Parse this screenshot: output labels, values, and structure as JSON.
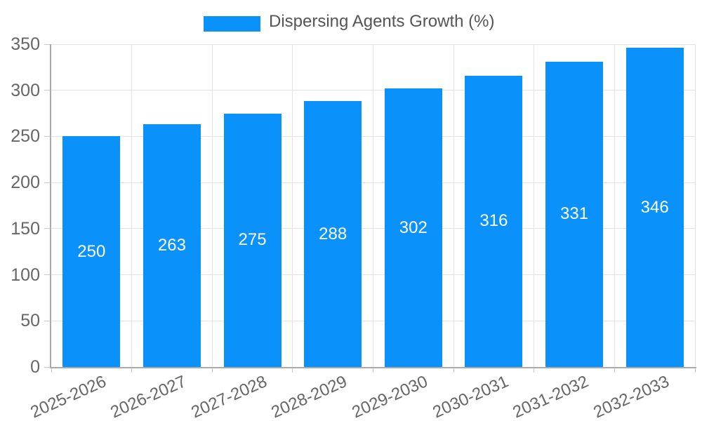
{
  "chart_data": {
    "type": "bar",
    "title": "",
    "series_name": "Dispersing Agents Growth (%)",
    "categories": [
      "2025-2026",
      "2026-2027",
      "2027-2028",
      "2028-2029",
      "2029-2030",
      "2030-2031",
      "2031-2032",
      "2032-2033"
    ],
    "values": [
      250,
      263,
      275,
      288,
      302,
      316,
      331,
      346
    ],
    "xlabel": "",
    "ylabel": "",
    "ylim": [
      0,
      350
    ],
    "ytick_step": 50,
    "grid": "on",
    "legend_position": "top-center",
    "x_label_rotation_deg": -24,
    "colors": {
      "bar": "#0a91fa",
      "bar_label": "#ffffff",
      "grid": "#e3e3e3",
      "axis": "#aaaaaa",
      "tick": "#c9c9c9",
      "tick_label": "#666666",
      "legend_text": "#555555",
      "background": "#ffffff"
    }
  }
}
